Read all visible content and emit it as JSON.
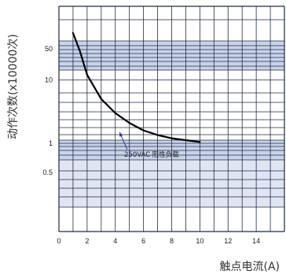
{
  "chart_data": {
    "type": "line",
    "title": "",
    "xlabel": "触点电流(A)",
    "ylabel": "动作次数(x10000次)",
    "x_ticks": [
      "0",
      "2",
      "4",
      "6",
      "8",
      "10",
      "12",
      "14"
    ],
    "y_ticks": [
      "50",
      "10",
      "1",
      "0.5"
    ],
    "xlim": [
      0,
      16
    ],
    "y_scale": "log",
    "series": [
      {
        "name": "250VAC 阻性负载",
        "x": [
          1,
          1.5,
          2,
          3,
          4,
          5,
          6,
          7,
          8,
          9,
          10
        ],
        "y": [
          55,
          28,
          12,
          5,
          3,
          2.1,
          1.6,
          1.35,
          1.2,
          1.12,
          1.05
        ]
      }
    ],
    "annotations": [
      {
        "text": "250VAC 阻性负载",
        "points_to": {
          "x": 4.3,
          "y": 1.5
        }
      }
    ],
    "grid": true,
    "colors": {
      "band": "#c9d3ea",
      "grid": "#1f2a44",
      "curve": "#000000",
      "annotation_line": "#2b3f8a"
    }
  }
}
